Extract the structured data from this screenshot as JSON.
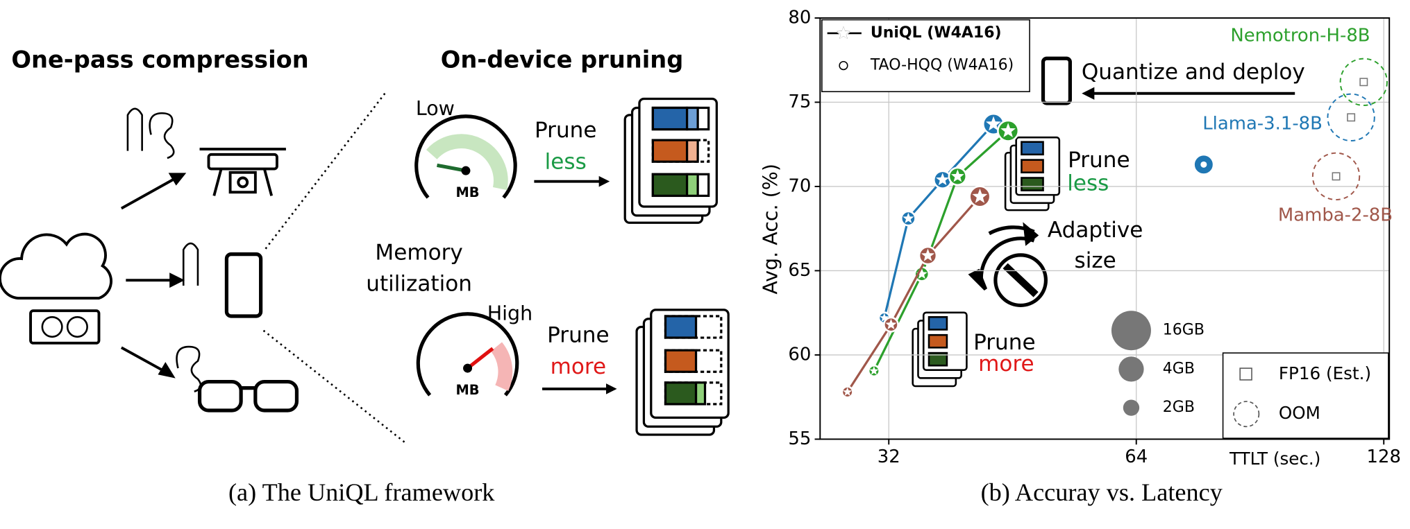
{
  "diagram": {
    "left_title": "One-pass compression",
    "right_title": "On-device pruning",
    "low": "Low",
    "high": "High",
    "mb": "MB",
    "memory": [
      "Memory",
      "utilization"
    ],
    "prune": "Prune",
    "less": "less",
    "more": "more",
    "caption": "(a) The UniQL framework"
  },
  "chart_data": {
    "type": "scatter",
    "caption": "(b) Accuray vs. Latency",
    "x_label": "TTLT (sec.)",
    "y_label": "Avg. Acc. (%)",
    "log_x": true,
    "grid": true,
    "xlim": [
      26.4,
      130
    ],
    "xticks": [
      32,
      64,
      128
    ],
    "ylim": [
      55,
      80
    ],
    "yticks": [
      55,
      60,
      65,
      70,
      75,
      80
    ],
    "legend": {
      "corner": "upper left",
      "entries": [
        "UniQL (W4A16)",
        "TAO-HQQ (W4A16)"
      ]
    },
    "legend2": {
      "corner": "lower right",
      "entries": [
        "FP16 (Est.)",
        "OOM"
      ]
    },
    "size_legend": [
      "16GB",
      "4GB",
      "2GB"
    ],
    "series": [
      {
        "name": "Llama-3.1-8B",
        "color": "#1f77b4",
        "x": [
          31.6,
          33.8,
          37.2,
          42.9
        ],
        "values": [
          62.2,
          68.1,
          70.4,
          73.7
        ],
        "tao_x": [
          77.3
        ],
        "tao_values": [
          71.3
        ],
        "fp16_x": [
          116.8
        ],
        "fp16_values": [
          74.1
        ]
      },
      {
        "name": "Nemotron-H-8B",
        "color": "#2ca02c",
        "x": [
          30.7,
          35.1,
          38.8,
          44.7
        ],
        "values": [
          59.05,
          64.8,
          70.6,
          73.3
        ],
        "fp16_x": [
          121
        ],
        "fp16_values": [
          76.2
        ]
      },
      {
        "name": "Mamba-2-8B",
        "color": "#a0574a",
        "x": [
          28.5,
          32.2,
          35.7,
          41.3
        ],
        "values": [
          57.8,
          61.8,
          65.9,
          69.4
        ],
        "fp16_x": [
          112
        ],
        "fp16_values": [
          70.6
        ]
      }
    ],
    "annotations": {
      "deploy": "Quantize and deploy",
      "prune": "Prune",
      "less": "less",
      "more": "more",
      "adaptive": [
        "Adaptive",
        "size"
      ]
    }
  }
}
